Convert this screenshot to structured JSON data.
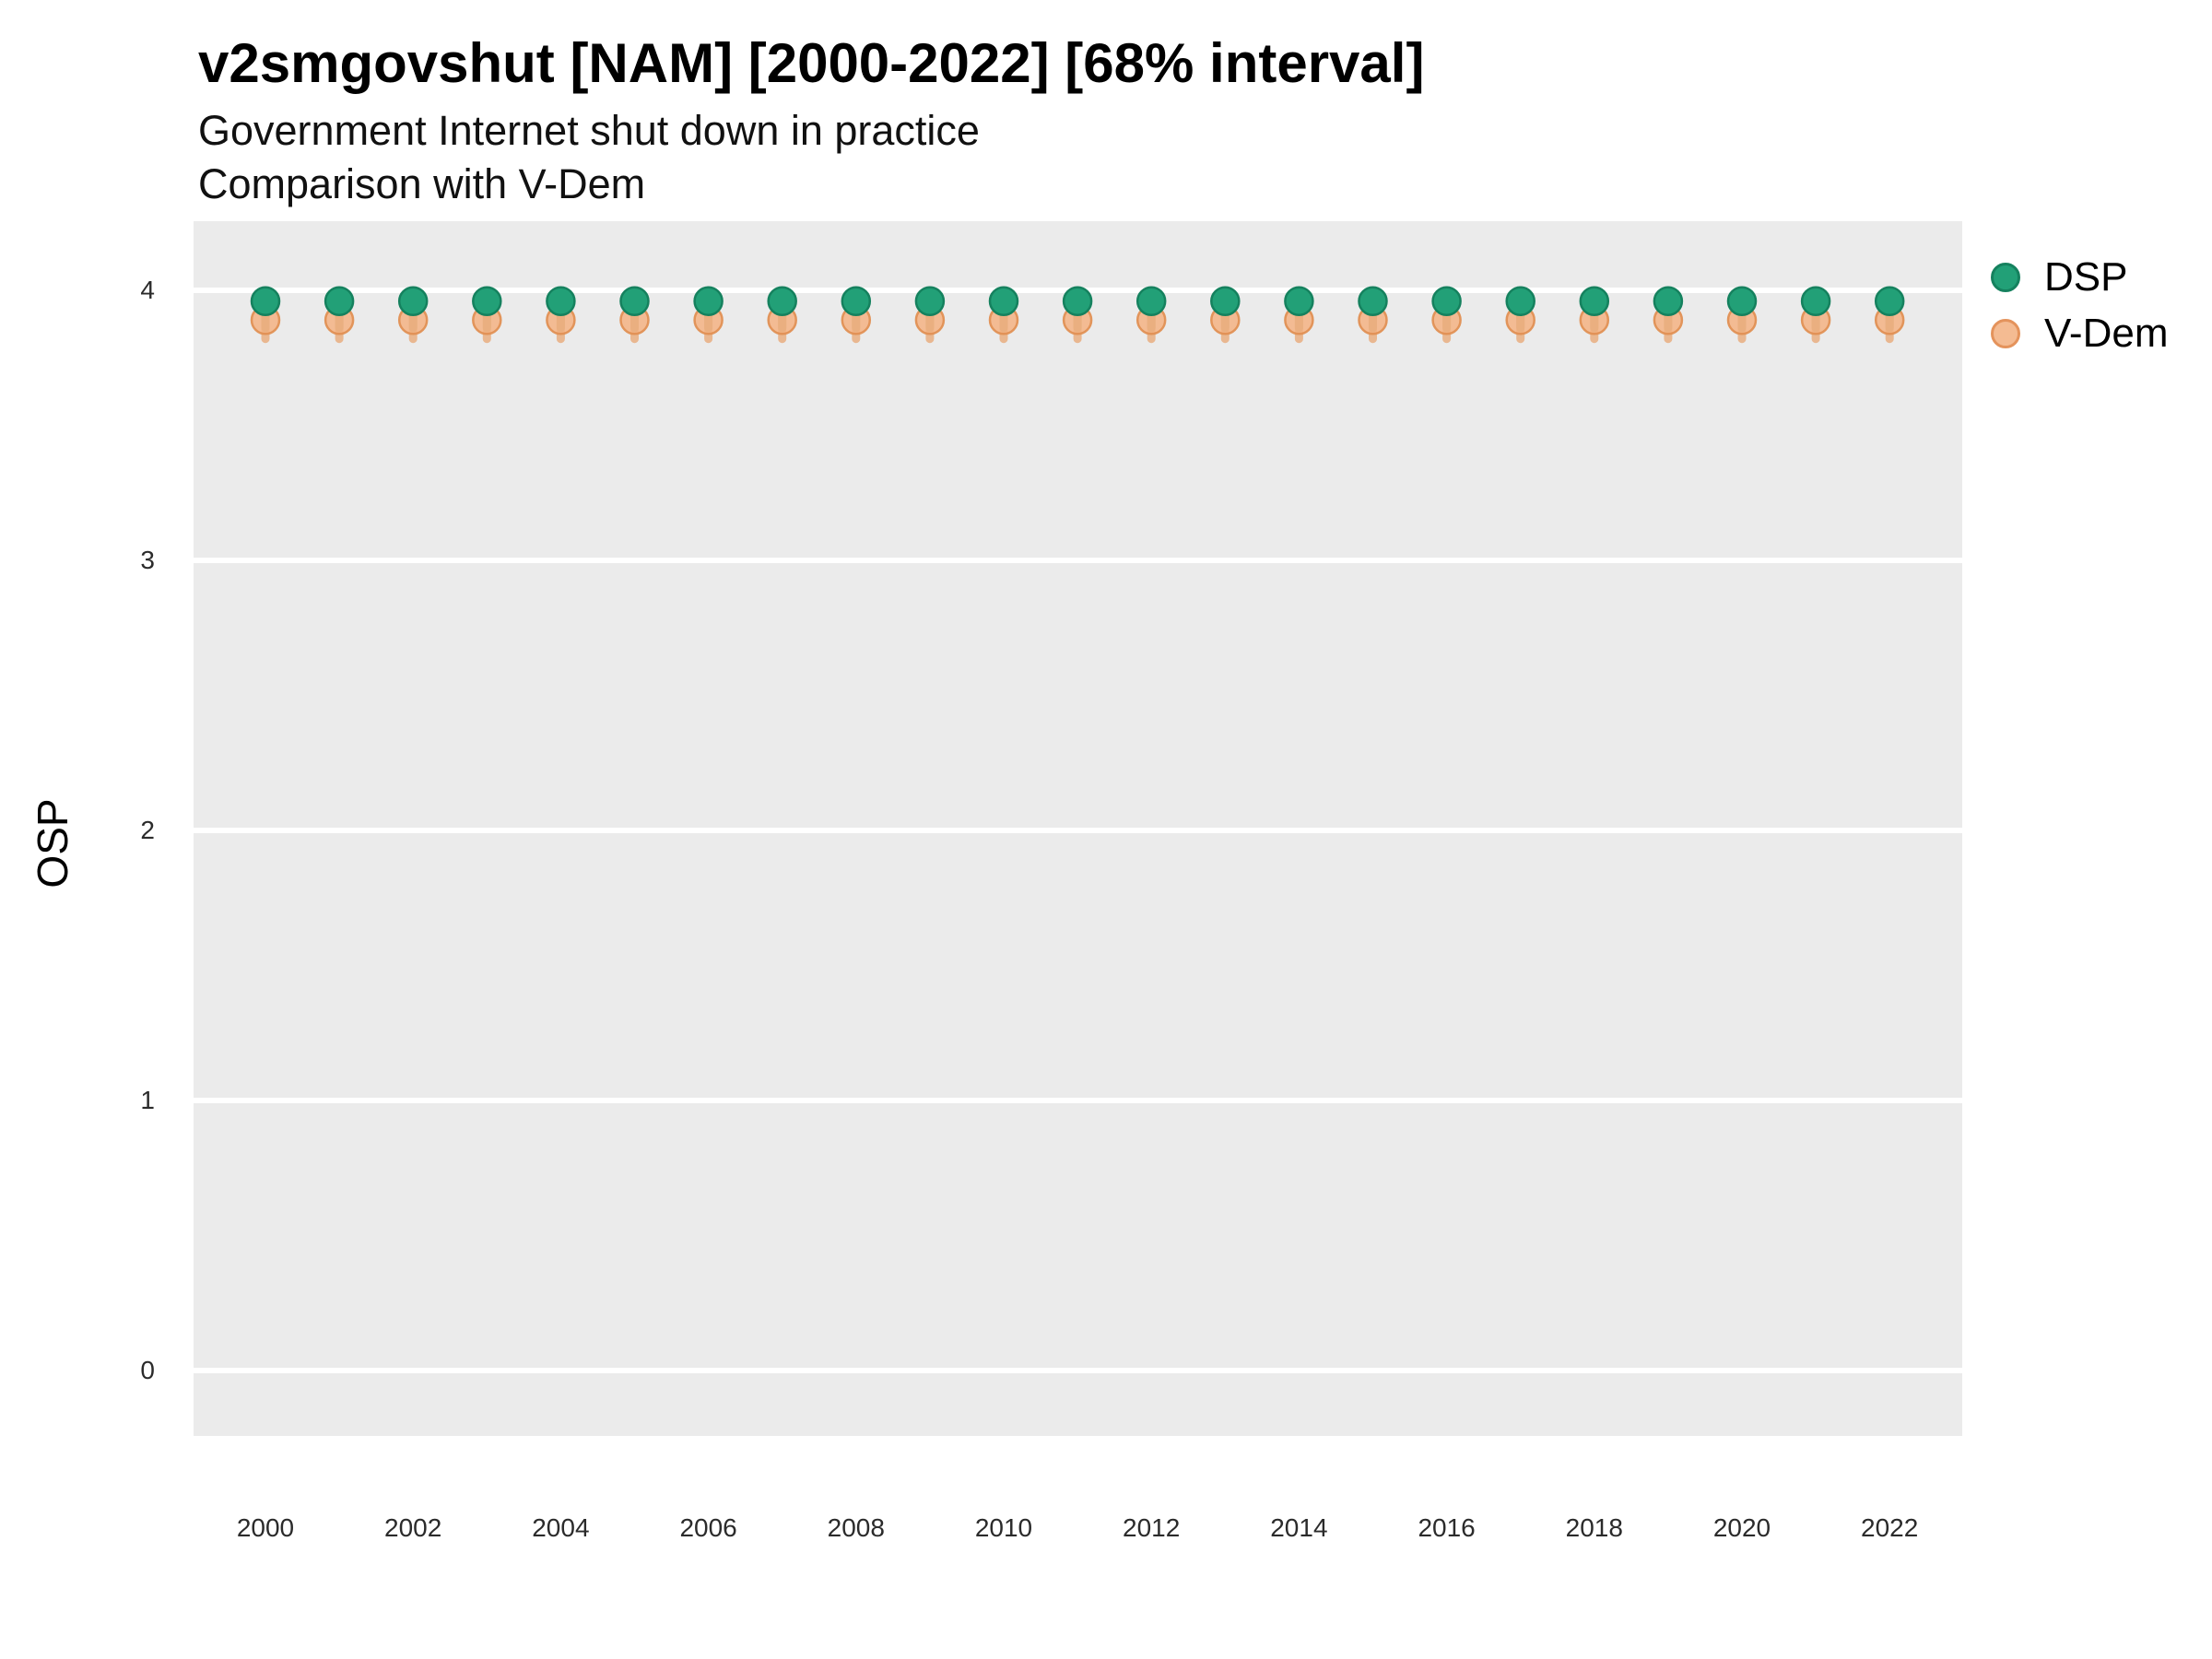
{
  "header": {
    "title": "v2smgovshut [NAM] [2000-2022] [68% interval]",
    "subtitle": "Government Internet shut down in practice",
    "subtitle2": "Comparison with V-Dem"
  },
  "y_axis": {
    "label": "OSP",
    "ticks": [
      4,
      3,
      2,
      1,
      0
    ]
  },
  "x_axis": {
    "tick_years": [
      2000,
      2002,
      2004,
      2006,
      2008,
      2010,
      2012,
      2014,
      2016,
      2018,
      2020,
      2022
    ]
  },
  "legend": {
    "items": [
      {
        "label": "DSP",
        "fill": "#22a077",
        "stroke": "#15815e"
      },
      {
        "label": "V-Dem",
        "fill": "#f4bb92",
        "stroke": "#e4935c"
      }
    ]
  },
  "colors": {
    "panel_background": "#ebebeb",
    "gridline": "#ffffff",
    "dsp_fill": "#22a077",
    "dsp_stroke": "#15815e",
    "dsp_bar": "rgba(27,140,101,0.7)",
    "vdem_fill": "rgba(245,179,132,0.85)",
    "vdem_stroke": "rgba(224,144,84,0.95)",
    "vdem_bar": "rgba(231,148,83,0.6)"
  },
  "chart_data": {
    "type": "scatter",
    "title": "v2smgovshut [NAM] [2000-2022] [68% interval]",
    "subtitle": "Government Internet shut down in practice",
    "comparison": "Comparison with V-Dem",
    "interval": "68%",
    "xlabel": "",
    "ylabel": "OSP",
    "ylim": [
      -0.26,
      4.26
    ],
    "xlim": [
      1999,
      2023
    ],
    "grid": "major-horizontal",
    "legend_position": "right-top",
    "x": [
      2000,
      2001,
      2002,
      2003,
      2004,
      2005,
      2006,
      2007,
      2008,
      2009,
      2010,
      2011,
      2012,
      2013,
      2014,
      2015,
      2016,
      2017,
      2018,
      2019,
      2020,
      2021,
      2022
    ],
    "series": [
      {
        "name": "DSP",
        "style": "pointrange",
        "values": [
          3.96,
          3.96,
          3.96,
          3.96,
          3.96,
          3.96,
          3.96,
          3.96,
          3.96,
          3.96,
          3.96,
          3.96,
          3.96,
          3.96,
          3.96,
          3.96,
          3.96,
          3.96,
          3.96,
          3.96,
          3.96,
          3.96,
          3.96
        ],
        "ci_low": [
          3.86,
          3.86,
          3.86,
          3.86,
          3.86,
          3.86,
          3.86,
          3.86,
          3.86,
          3.86,
          3.86,
          3.86,
          3.86,
          3.86,
          3.86,
          3.86,
          3.86,
          3.86,
          3.86,
          3.86,
          3.86,
          3.86,
          3.86
        ],
        "ci_high": [
          4.0,
          4.0,
          4.0,
          4.0,
          4.0,
          4.0,
          4.0,
          4.0,
          4.0,
          4.0,
          4.0,
          4.0,
          4.0,
          4.0,
          4.0,
          4.0,
          4.0,
          4.0,
          4.0,
          4.0,
          4.0,
          4.0,
          4.0
        ]
      },
      {
        "name": "V-Dem",
        "style": "pointrange",
        "values": [
          3.89,
          3.89,
          3.89,
          3.89,
          3.89,
          3.89,
          3.89,
          3.89,
          3.89,
          3.89,
          3.89,
          3.89,
          3.89,
          3.89,
          3.89,
          3.89,
          3.89,
          3.89,
          3.89,
          3.89,
          3.89,
          3.89,
          3.89
        ],
        "ci_low": [
          3.82,
          3.82,
          3.82,
          3.82,
          3.82,
          3.82,
          3.82,
          3.82,
          3.82,
          3.82,
          3.82,
          3.82,
          3.82,
          3.82,
          3.82,
          3.82,
          3.82,
          3.82,
          3.82,
          3.82,
          3.82,
          3.82,
          3.82
        ],
        "ci_high": [
          4.0,
          4.0,
          4.0,
          4.0,
          4.0,
          4.0,
          4.0,
          4.0,
          4.0,
          4.0,
          4.0,
          4.0,
          4.0,
          4.0,
          4.0,
          4.0,
          4.0,
          4.0,
          4.0,
          4.0,
          4.0,
          4.0,
          4.0
        ]
      }
    ]
  }
}
